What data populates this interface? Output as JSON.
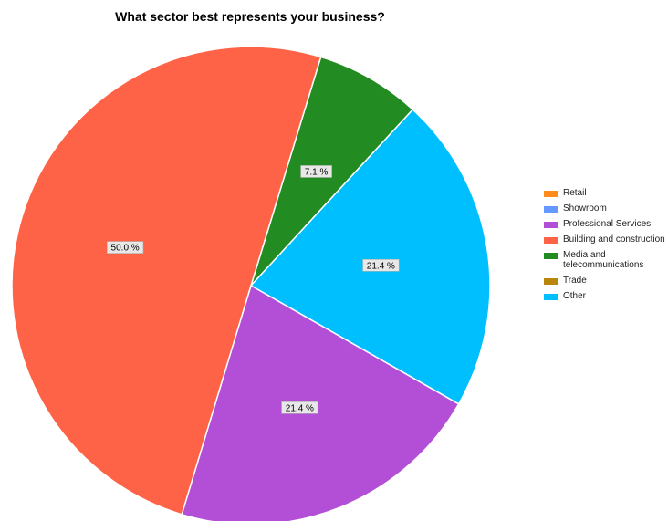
{
  "chart_data": {
    "type": "pie",
    "title": "What sector best represents your business?",
    "categories": [
      "Retail",
      "Showroom",
      "Professional Services",
      "Building and construction",
      "Media and telecommunications",
      "Trade",
      "Other"
    ],
    "values": [
      0,
      0,
      21.4,
      50.0,
      7.1,
      0,
      21.4
    ],
    "data_labels": [
      "",
      "",
      "21.4 %",
      "50.0 %",
      "7.1 %",
      "",
      "21.4 %"
    ],
    "colors": [
      "#ff8c1a",
      "#6699ff",
      "#b24fd6",
      "#ff6347",
      "#228b22",
      "#b8860b",
      "#00bfff"
    ],
    "legend": "right"
  }
}
